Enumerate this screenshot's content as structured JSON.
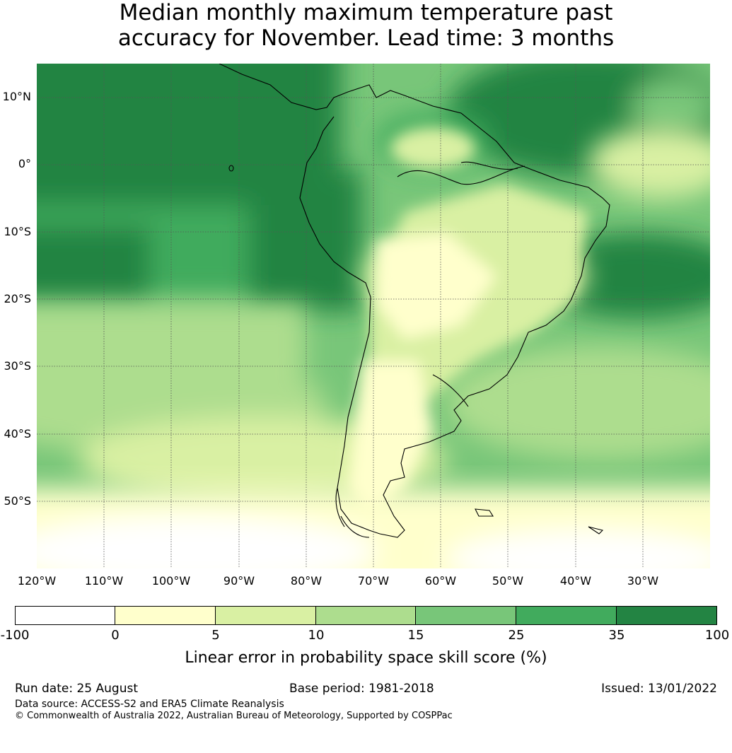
{
  "title_line1": "Median monthly maximum temperature past",
  "title_line2": "accuracy for November. Lead time: 3 months",
  "map": {
    "lon_range": [
      -120,
      -20
    ],
    "lat_range": [
      -60,
      15
    ],
    "lat_ticks": [
      "10°N",
      "0°",
      "10°S",
      "20°S",
      "30°S",
      "40°S",
      "50°S"
    ],
    "lat_values": [
      10,
      0,
      -10,
      -20,
      -30,
      -40,
      -50
    ],
    "lon_ticks": [
      "120°W",
      "110°W",
      "100°W",
      "90°W",
      "80°W",
      "70°W",
      "60°W",
      "50°W",
      "40°W",
      "30°W"
    ],
    "lon_values": [
      -120,
      -110,
      -100,
      -90,
      -80,
      -70,
      -60,
      -50,
      -40,
      -30
    ]
  },
  "colorbar": {
    "bounds": [
      "-100",
      "0",
      "5",
      "10",
      "15",
      "25",
      "35",
      "100"
    ],
    "colors": [
      "#ffffff",
      "#ffffcc",
      "#d9f0a3",
      "#addd8e",
      "#78c679",
      "#41ab5d",
      "#238443"
    ],
    "label": "Linear error in probability space skill score (%)"
  },
  "footer": {
    "run_date": "Run date: 25 August",
    "base_period": "Base period: 1981-2018",
    "issued": "Issued: 13/01/2022",
    "data_source": "Data source: ACCESS-S2 and ERA5 Climate Reanalysis",
    "copyright": "© Commonwealth of Australia 2022, Australian Bureau of Meteorology, Supported by COSPPac"
  }
}
